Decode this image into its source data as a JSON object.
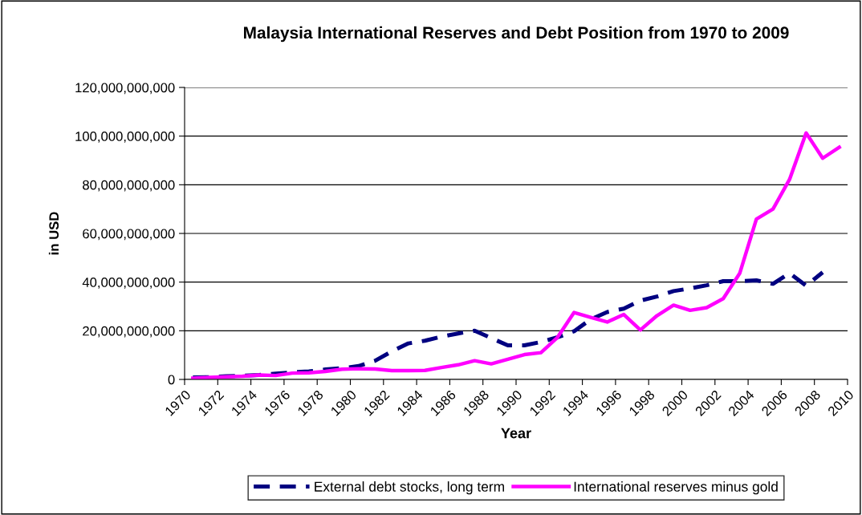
{
  "chart_data": {
    "type": "line",
    "title": "Malaysia International Reserves and Debt Position from 1970 to 2009",
    "xlabel": "Year",
    "ylabel": "in USD",
    "x": [
      1970,
      1971,
      1972,
      1973,
      1974,
      1975,
      1976,
      1977,
      1978,
      1979,
      1980,
      1981,
      1982,
      1983,
      1984,
      1985,
      1986,
      1987,
      1988,
      1989,
      1990,
      1991,
      1992,
      1993,
      1994,
      1995,
      1996,
      1997,
      1998,
      1999,
      2000,
      2001,
      2002,
      2003,
      2004,
      2005,
      2006,
      2007,
      2008,
      2009
    ],
    "xlim": [
      1969.5,
      2009.5
    ],
    "xticks": [
      {
        "value": 1969.5,
        "label": "1970"
      },
      {
        "value": 1971.5,
        "label": "1972"
      },
      {
        "value": 1973.5,
        "label": "1974"
      },
      {
        "value": 1975.5,
        "label": "1976"
      },
      {
        "value": 1977.5,
        "label": "1978"
      },
      {
        "value": 1979.5,
        "label": "1980"
      },
      {
        "value": 1981.5,
        "label": "1982"
      },
      {
        "value": 1983.5,
        "label": "1984"
      },
      {
        "value": 1985.5,
        "label": "1986"
      },
      {
        "value": 1987.5,
        "label": "1988"
      },
      {
        "value": 1989.5,
        "label": "1990"
      },
      {
        "value": 1991.5,
        "label": "1992"
      },
      {
        "value": 1993.5,
        "label": "1994"
      },
      {
        "value": 1995.5,
        "label": "1996"
      },
      {
        "value": 1997.5,
        "label": "1998"
      },
      {
        "value": 1999.5,
        "label": "2000"
      },
      {
        "value": 2001.5,
        "label": "2002"
      },
      {
        "value": 2003.5,
        "label": "2004"
      },
      {
        "value": 2005.5,
        "label": "2006"
      },
      {
        "value": 2007.5,
        "label": "2008"
      },
      {
        "value": 2009.5,
        "label": "2010"
      }
    ],
    "ylim": [
      0,
      120000000000
    ],
    "yticks": [
      {
        "value": 0,
        "label": "0"
      },
      {
        "value": 20000000000,
        "label": "20,000,000,000"
      },
      {
        "value": 40000000000,
        "label": "40,000,000,000"
      },
      {
        "value": 60000000000,
        "label": "60,000,000,000"
      },
      {
        "value": 80000000000,
        "label": "80,000,000,000"
      },
      {
        "value": 100000000000,
        "label": "100,000,000,000"
      },
      {
        "value": 120000000000,
        "label": "120,000,000,000"
      }
    ],
    "grid": "y",
    "legend": "bottom",
    "series": [
      {
        "name": "External debt stocks, long term",
        "color": "#000080",
        "line_style": "dashed",
        "values": [
          800000000,
          900000000,
          1300000000,
          1500000000,
          1800000000,
          2400000000,
          2900000000,
          3300000000,
          4100000000,
          4600000000,
          5500000000,
          7700000000,
          11500000000,
          14800000000,
          15900000000,
          17600000000,
          18900000000,
          20000000000,
          17000000000,
          14000000000,
          14000000000,
          15400000000,
          17300000000,
          19800000000,
          24700000000,
          27700000000,
          29100000000,
          32400000000,
          34100000000,
          36300000000,
          37400000000,
          38700000000,
          40400000000,
          40400000000,
          40700000000,
          39300000000,
          43700000000,
          38500000000,
          44000000000,
          null
        ]
      },
      {
        "name": "International reserves minus gold",
        "color": "#ff00ff",
        "line_style": "solid",
        "values": [
          500000000,
          800000000,
          1100000000,
          1300000000,
          1800000000,
          1600000000,
          2600000000,
          2700000000,
          3300000000,
          4200000000,
          4400000000,
          4300000000,
          3600000000,
          3600000000,
          3700000000,
          4900000000,
          6000000000,
          7700000000,
          6400000000,
          8300000000,
          10200000000,
          11000000000,
          17300000000,
          27500000000,
          25500000000,
          23600000000,
          26700000000,
          20300000000,
          26200000000,
          30500000000,
          28400000000,
          29500000000,
          33200000000,
          43700000000,
          65900000000,
          70000000000,
          82200000000,
          101300000000,
          90900000000,
          95400000000
        ]
      }
    ]
  }
}
